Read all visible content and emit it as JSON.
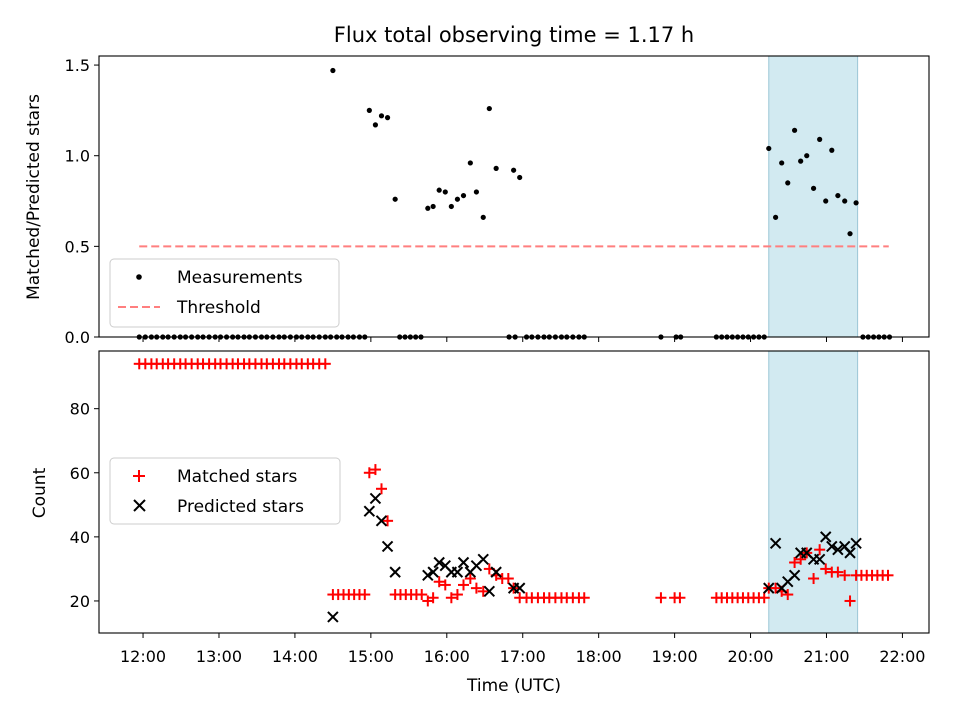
{
  "chart_data": {
    "title": "Flux total observing time = 1.17 h",
    "xlabel": "Time (UTC)",
    "x_unit": "hours (UTC)",
    "xlim": [
      11.42,
      22.35
    ],
    "xticks": [
      {
        "value": 12,
        "label": "12:00"
      },
      {
        "value": 13,
        "label": "13:00"
      },
      {
        "value": 14,
        "label": "14:00"
      },
      {
        "value": 15,
        "label": "15:00"
      },
      {
        "value": 16,
        "label": "16:00"
      },
      {
        "value": 17,
        "label": "17:00"
      },
      {
        "value": 18,
        "label": "18:00"
      },
      {
        "value": 19,
        "label": "19:00"
      },
      {
        "value": 20,
        "label": "20:00"
      },
      {
        "value": 21,
        "label": "21:00"
      },
      {
        "value": 22,
        "label": "22:00"
      }
    ],
    "highlight_span": {
      "x0": 20.24,
      "x1": 21.41,
      "color": "#add8e6"
    },
    "top": {
      "type": "scatter",
      "ylabel": "Matched/Predicted stars",
      "ylim": [
        0.0,
        1.55
      ],
      "yticks": [
        {
          "value": 0.0,
          "label": "0.0"
        },
        {
          "value": 0.5,
          "label": "0.5"
        },
        {
          "value": 1.0,
          "label": "1.0"
        },
        {
          "value": 1.5,
          "label": "1.5"
        }
      ],
      "legend_position": "bottom-left",
      "threshold": {
        "name": "Threshold",
        "value": 0.5,
        "x_range": [
          11.95,
          21.82
        ],
        "color": "#ff7f7f"
      },
      "measurements": {
        "name": "Measurements",
        "color": "#000000",
        "points": [
          [
            11.95,
            0
          ],
          [
            12.03,
            0
          ],
          [
            12.11,
            0
          ],
          [
            12.18,
            0
          ],
          [
            12.26,
            0
          ],
          [
            12.33,
            0
          ],
          [
            12.41,
            0
          ],
          [
            12.49,
            0
          ],
          [
            12.56,
            0
          ],
          [
            12.64,
            0
          ],
          [
            12.72,
            0
          ],
          [
            12.79,
            0
          ],
          [
            12.87,
            0
          ],
          [
            12.95,
            0
          ],
          [
            13.02,
            0
          ],
          [
            13.1,
            0
          ],
          [
            13.18,
            0
          ],
          [
            13.25,
            0
          ],
          [
            13.33,
            0
          ],
          [
            13.4,
            0
          ],
          [
            13.48,
            0
          ],
          [
            13.56,
            0
          ],
          [
            13.63,
            0
          ],
          [
            13.71,
            0
          ],
          [
            13.79,
            0
          ],
          [
            13.86,
            0
          ],
          [
            13.94,
            0
          ],
          [
            14.02,
            0
          ],
          [
            14.09,
            0
          ],
          [
            14.17,
            0
          ],
          [
            14.24,
            0
          ],
          [
            14.32,
            0
          ],
          [
            14.4,
            0
          ],
          [
            14.47,
            0
          ],
          [
            14.55,
            0
          ],
          [
            14.62,
            0
          ],
          [
            14.7,
            0
          ],
          [
            14.77,
            0
          ],
          [
            14.85,
            0
          ],
          [
            14.92,
            0
          ],
          [
            15.38,
            0
          ],
          [
            15.45,
            0
          ],
          [
            15.52,
            0
          ],
          [
            15.59,
            0
          ],
          [
            15.66,
            0
          ],
          [
            16.82,
            0
          ],
          [
            16.9,
            0
          ],
          [
            17.05,
            0
          ],
          [
            17.12,
            0
          ],
          [
            17.2,
            0
          ],
          [
            17.28,
            0
          ],
          [
            17.35,
            0
          ],
          [
            17.43,
            0
          ],
          [
            17.51,
            0
          ],
          [
            17.58,
            0
          ],
          [
            17.66,
            0
          ],
          [
            17.74,
            0
          ],
          [
            17.81,
            0
          ],
          [
            18.82,
            0
          ],
          [
            19.02,
            0
          ],
          [
            19.08,
            0
          ],
          [
            19.55,
            0
          ],
          [
            19.62,
            0
          ],
          [
            19.69,
            0
          ],
          [
            19.76,
            0
          ],
          [
            19.83,
            0
          ],
          [
            19.9,
            0
          ],
          [
            19.97,
            0
          ],
          [
            20.04,
            0
          ],
          [
            20.11,
            0
          ],
          [
            20.18,
            0
          ],
          [
            21.48,
            0
          ],
          [
            21.55,
            0
          ],
          [
            21.62,
            0
          ],
          [
            21.69,
            0
          ],
          [
            21.76,
            0
          ],
          [
            21.83,
            0
          ],
          [
            14.5,
            1.47
          ],
          [
            14.98,
            1.25
          ],
          [
            15.06,
            1.17
          ],
          [
            15.14,
            1.22
          ],
          [
            15.22,
            1.21
          ],
          [
            15.32,
            0.76
          ],
          [
            15.75,
            0.71
          ],
          [
            15.82,
            0.72
          ],
          [
            15.9,
            0.81
          ],
          [
            15.98,
            0.8
          ],
          [
            16.06,
            0.72
          ],
          [
            16.14,
            0.76
          ],
          [
            16.22,
            0.78
          ],
          [
            16.31,
            0.96
          ],
          [
            16.39,
            0.8
          ],
          [
            16.48,
            0.66
          ],
          [
            16.56,
            1.26
          ],
          [
            16.65,
            0.93
          ],
          [
            16.88,
            0.92
          ],
          [
            16.96,
            0.88
          ],
          [
            20.24,
            1.04
          ],
          [
            20.33,
            0.66
          ],
          [
            20.41,
            0.96
          ],
          [
            20.49,
            0.85
          ],
          [
            20.58,
            1.14
          ],
          [
            20.66,
            0.97
          ],
          [
            20.74,
            1.0
          ],
          [
            20.83,
            0.82
          ],
          [
            20.91,
            1.09
          ],
          [
            20.99,
            0.75
          ],
          [
            21.07,
            1.03
          ],
          [
            21.15,
            0.78
          ],
          [
            21.24,
            0.75
          ],
          [
            21.31,
            0.57
          ],
          [
            21.39,
            0.74
          ]
        ]
      }
    },
    "bottom": {
      "type": "scatter",
      "ylabel": "Count",
      "ylim": [
        10,
        98
      ],
      "yticks": [
        {
          "value": 20,
          "label": "20"
        },
        {
          "value": 40,
          "label": "40"
        },
        {
          "value": 60,
          "label": "60"
        },
        {
          "value": 80,
          "label": "80"
        }
      ],
      "legend_position": "center-left",
      "series": [
        {
          "name": "Matched stars",
          "marker": "plus",
          "color": "#ff0000",
          "points": [
            [
              11.95,
              94
            ],
            [
              12.03,
              94
            ],
            [
              12.11,
              94
            ],
            [
              12.18,
              94
            ],
            [
              12.26,
              94
            ],
            [
              12.33,
              94
            ],
            [
              12.41,
              94
            ],
            [
              12.49,
              94
            ],
            [
              12.56,
              94
            ],
            [
              12.64,
              94
            ],
            [
              12.72,
              94
            ],
            [
              12.79,
              94
            ],
            [
              12.87,
              94
            ],
            [
              12.95,
              94
            ],
            [
              13.02,
              94
            ],
            [
              13.1,
              94
            ],
            [
              13.18,
              94
            ],
            [
              13.25,
              94
            ],
            [
              13.33,
              94
            ],
            [
              13.4,
              94
            ],
            [
              13.48,
              94
            ],
            [
              13.56,
              94
            ],
            [
              13.63,
              94
            ],
            [
              13.71,
              94
            ],
            [
              13.79,
              94
            ],
            [
              13.86,
              94
            ],
            [
              13.94,
              94
            ],
            [
              14.02,
              94
            ],
            [
              14.09,
              94
            ],
            [
              14.17,
              94
            ],
            [
              14.24,
              94
            ],
            [
              14.32,
              94
            ],
            [
              14.4,
              94
            ],
            [
              14.5,
              22
            ],
            [
              14.57,
              22
            ],
            [
              14.64,
              22
            ],
            [
              14.71,
              22
            ],
            [
              14.78,
              22
            ],
            [
              14.85,
              22
            ],
            [
              14.92,
              22
            ],
            [
              14.98,
              60
            ],
            [
              15.06,
              61
            ],
            [
              15.14,
              55
            ],
            [
              15.22,
              45
            ],
            [
              15.32,
              22
            ],
            [
              15.39,
              22
            ],
            [
              15.46,
              22
            ],
            [
              15.53,
              22
            ],
            [
              15.6,
              22
            ],
            [
              15.67,
              22
            ],
            [
              15.75,
              20
            ],
            [
              15.82,
              21
            ],
            [
              15.9,
              26
            ],
            [
              15.98,
              25
            ],
            [
              16.06,
              21
            ],
            [
              16.14,
              22
            ],
            [
              16.22,
              25
            ],
            [
              16.31,
              27
            ],
            [
              16.39,
              24
            ],
            [
              16.48,
              23
            ],
            [
              16.56,
              30
            ],
            [
              16.65,
              28
            ],
            [
              16.73,
              27
            ],
            [
              16.81,
              27
            ],
            [
              16.88,
              24
            ],
            [
              16.96,
              21
            ],
            [
              17.05,
              21
            ],
            [
              17.12,
              21
            ],
            [
              17.2,
              21
            ],
            [
              17.28,
              21
            ],
            [
              17.35,
              21
            ],
            [
              17.43,
              21
            ],
            [
              17.51,
              21
            ],
            [
              17.58,
              21
            ],
            [
              17.66,
              21
            ],
            [
              17.74,
              21
            ],
            [
              17.81,
              21
            ],
            [
              18.82,
              21
            ],
            [
              19.0,
              21
            ],
            [
              19.07,
              21
            ],
            [
              19.55,
              21
            ],
            [
              19.62,
              21
            ],
            [
              19.69,
              21
            ],
            [
              19.76,
              21
            ],
            [
              19.83,
              21
            ],
            [
              19.9,
              21
            ],
            [
              19.97,
              21
            ],
            [
              20.04,
              21
            ],
            [
              20.11,
              21
            ],
            [
              20.18,
              21
            ],
            [
              20.24,
              24
            ],
            [
              20.33,
              24
            ],
            [
              20.41,
              23
            ],
            [
              20.49,
              22
            ],
            [
              20.58,
              32
            ],
            [
              20.66,
              33
            ],
            [
              20.74,
              35
            ],
            [
              20.83,
              27
            ],
            [
              20.91,
              36
            ],
            [
              20.99,
              30
            ],
            [
              21.07,
              29
            ],
            [
              21.15,
              29
            ],
            [
              21.24,
              28
            ],
            [
              21.31,
              20
            ],
            [
              21.39,
              28
            ],
            [
              21.46,
              28
            ],
            [
              21.53,
              28
            ],
            [
              21.6,
              28
            ],
            [
              21.67,
              28
            ],
            [
              21.74,
              28
            ],
            [
              21.81,
              28
            ]
          ]
        },
        {
          "name": "Predicted stars",
          "marker": "x",
          "color": "#000000",
          "points": [
            [
              14.5,
              15
            ],
            [
              14.98,
              48
            ],
            [
              15.06,
              52
            ],
            [
              15.14,
              45
            ],
            [
              15.22,
              37
            ],
            [
              15.32,
              29
            ],
            [
              15.75,
              28
            ],
            [
              15.82,
              29
            ],
            [
              15.9,
              32
            ],
            [
              15.98,
              31
            ],
            [
              16.06,
              29
            ],
            [
              16.14,
              29
            ],
            [
              16.22,
              32
            ],
            [
              16.31,
              29
            ],
            [
              16.39,
              31
            ],
            [
              16.48,
              33
            ],
            [
              16.56,
              23
            ],
            [
              16.65,
              29
            ],
            [
              16.88,
              24
            ],
            [
              16.96,
              24
            ],
            [
              20.24,
              24
            ],
            [
              20.33,
              38
            ],
            [
              20.41,
              24
            ],
            [
              20.49,
              26
            ],
            [
              20.58,
              28
            ],
            [
              20.66,
              35
            ],
            [
              20.74,
              35
            ],
            [
              20.83,
              33
            ],
            [
              20.91,
              33
            ],
            [
              20.99,
              40
            ],
            [
              21.07,
              37
            ],
            [
              21.15,
              36
            ],
            [
              21.24,
              37
            ],
            [
              21.31,
              35
            ],
            [
              21.39,
              38
            ]
          ]
        }
      ]
    }
  }
}
